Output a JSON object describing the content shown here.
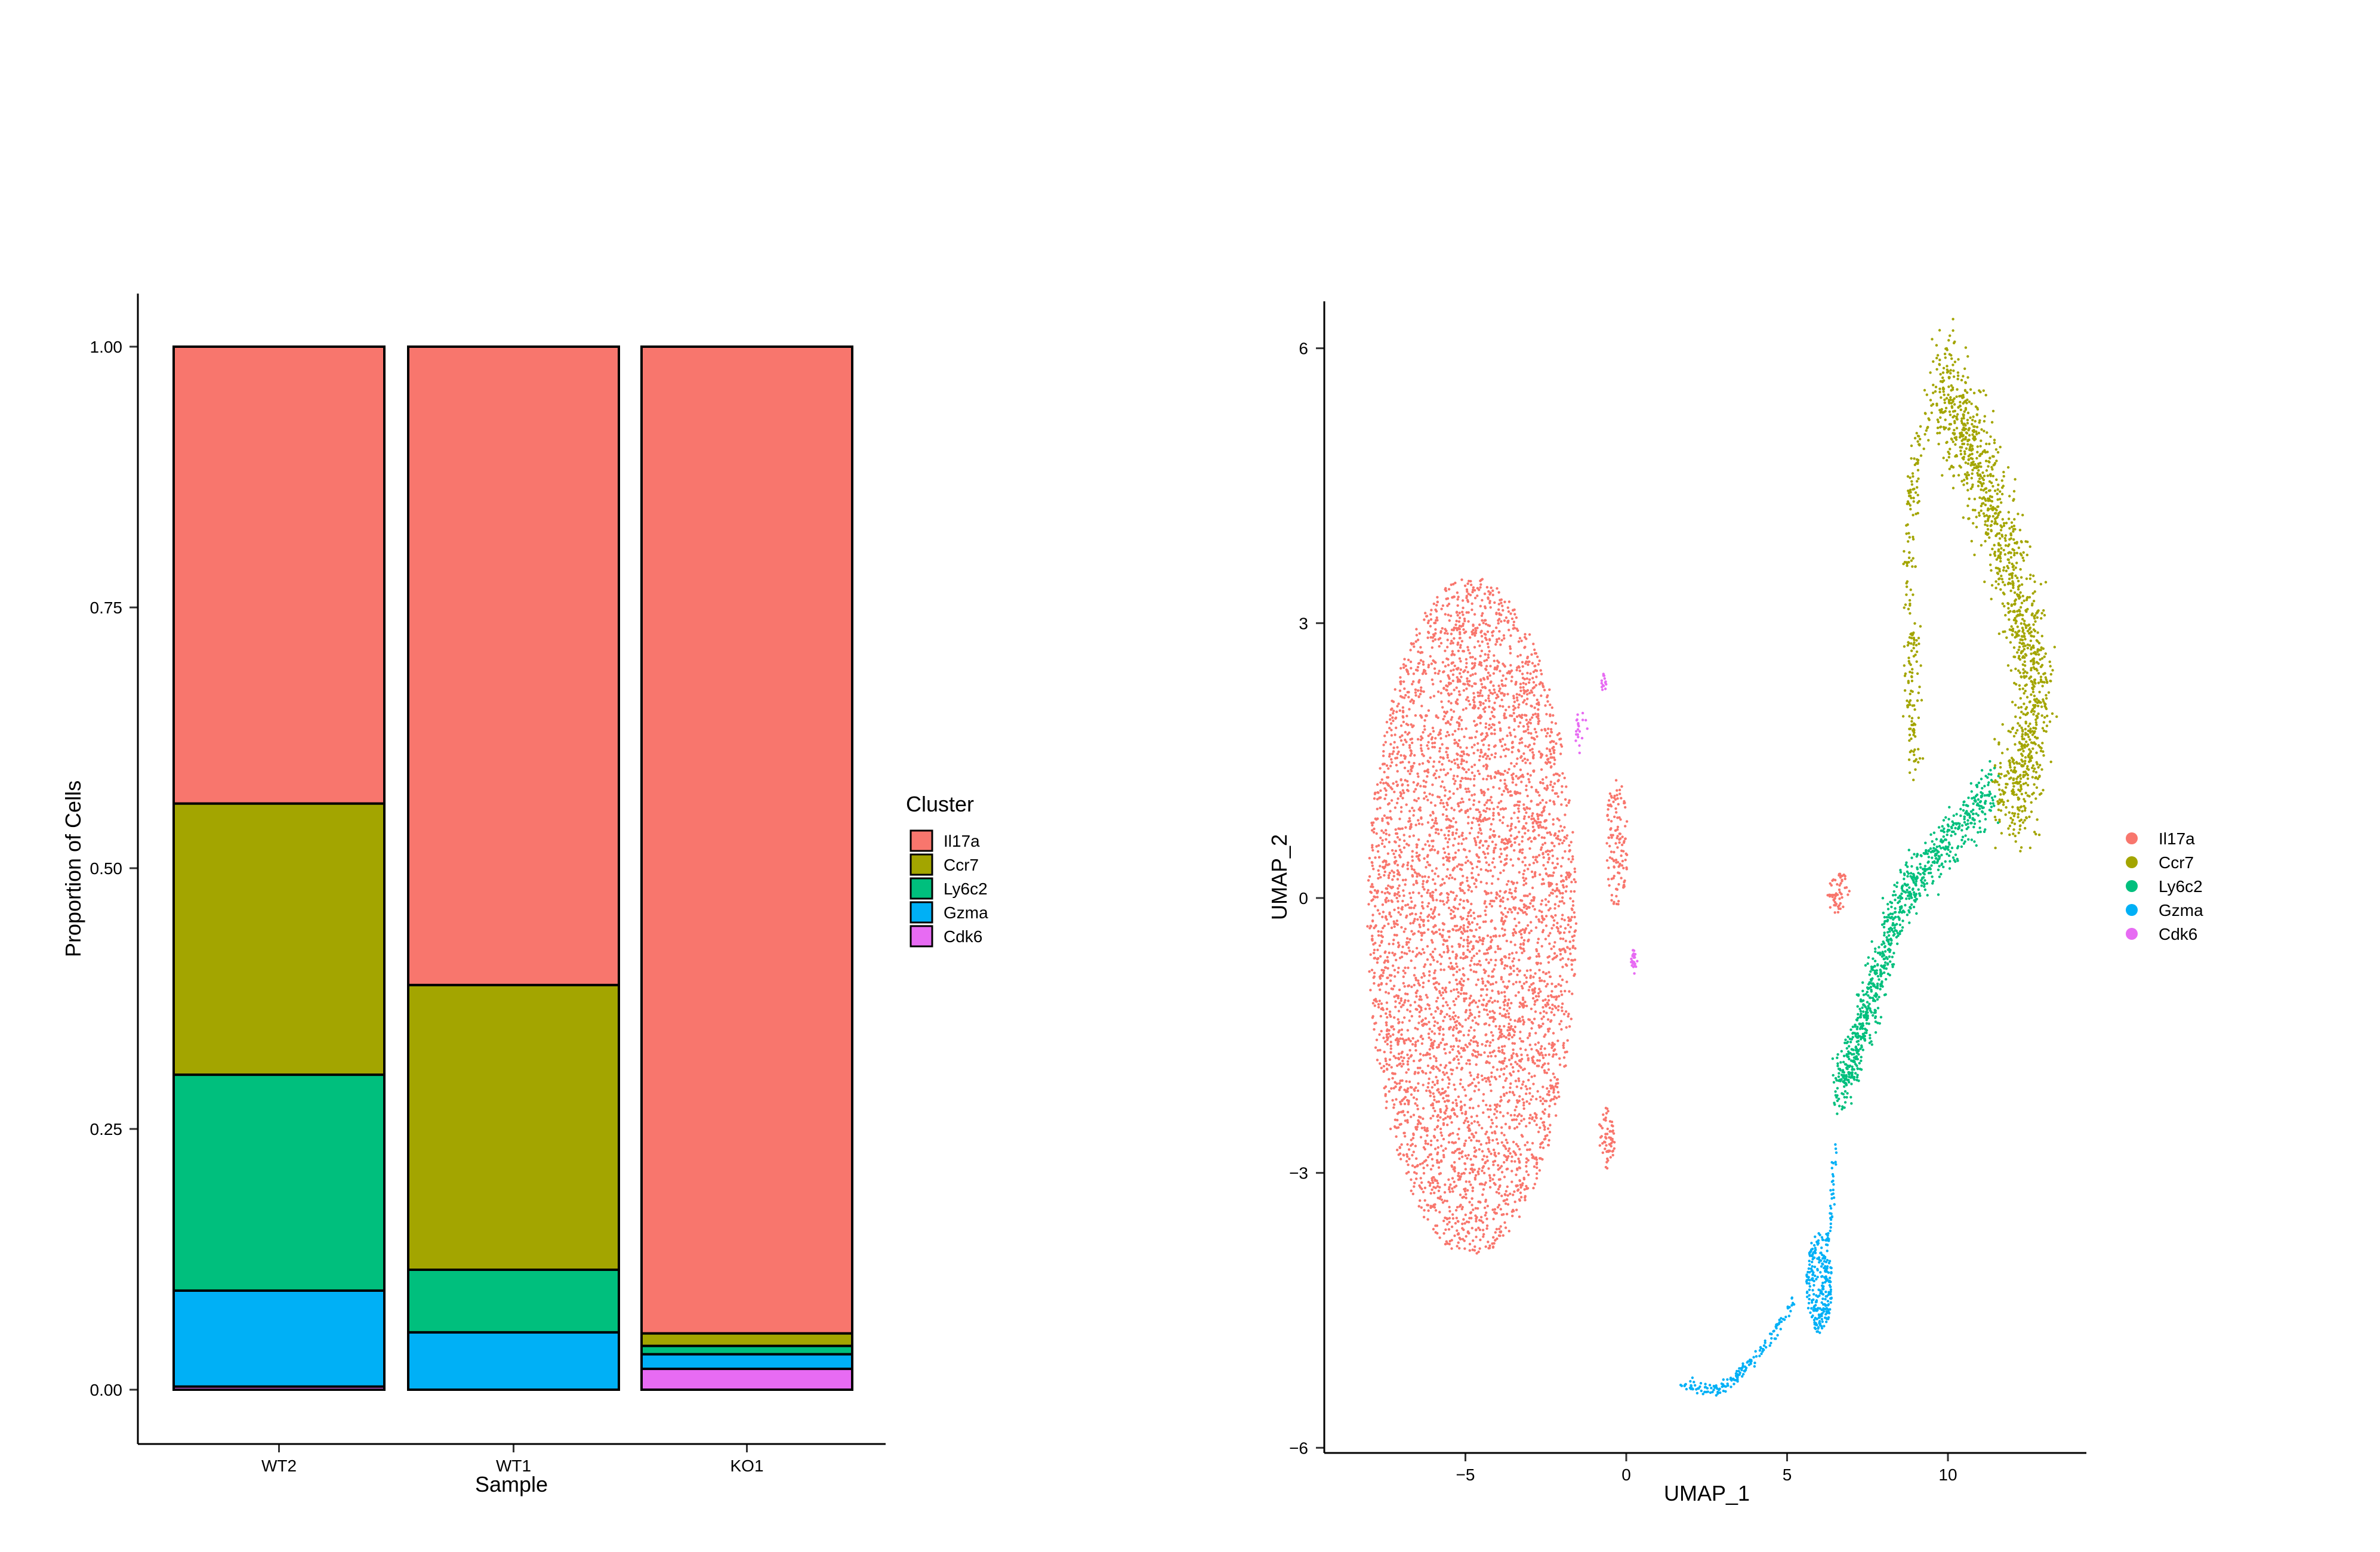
{
  "chart_data": [
    {
      "type": "bar",
      "stacked": true,
      "normalized": true,
      "categories": [
        "WT2",
        "WT1",
        "KO1"
      ],
      "series": [
        {
          "name": "Il17a",
          "color": "#F8766D",
          "values": [
            0.438,
            0.612,
            0.946
          ]
        },
        {
          "name": "Ccr7",
          "color": "#A3A500",
          "values": [
            0.26,
            0.273,
            0.012
          ]
        },
        {
          "name": "Ly6c2",
          "color": "#00BF7D",
          "values": [
            0.207,
            0.06,
            0.008
          ]
        },
        {
          "name": "Gzma",
          "color": "#00B0F6",
          "values": [
            0.092,
            0.055,
            0.014
          ]
        },
        {
          "name": "Cdk6",
          "color": "#E76BF3",
          "values": [
            0.003,
            0.0,
            0.02
          ]
        }
      ],
      "xlabel": "Sample",
      "ylabel": "Proportion of Cells",
      "ylim": [
        0,
        1
      ],
      "yticks": [
        0.0,
        0.25,
        0.5,
        0.75,
        1.0
      ],
      "ytick_labels": [
        "0.00",
        "0.25",
        "0.50",
        "0.75",
        "1.00"
      ],
      "legend_title": "Cluster",
      "legend_position": "right",
      "grid": false
    },
    {
      "type": "scatter",
      "xlabel": "UMAP_1",
      "ylabel": "UMAP_2",
      "xlim": [
        -8.7,
        14.6
      ],
      "ylim": [
        -6.1,
        6.3
      ],
      "xticks": [
        -5,
        0,
        5,
        10
      ],
      "xtick_labels": [
        "−5",
        "0",
        "5",
        "10"
      ],
      "yticks": [
        -6,
        -3,
        0,
        3,
        6
      ],
      "ytick_labels": [
        "−6",
        "−3",
        "0",
        "3",
        "6"
      ],
      "legend_position": "right",
      "grid": false,
      "series": [
        {
          "name": "Il17a",
          "color": "#F8766D",
          "approx_points": 5200,
          "cluster_centers": [
            [
              -4.8,
              -0.2
            ],
            [
              6.6,
              0.1
            ],
            [
              -0.6,
              -2.6
            ]
          ]
        },
        {
          "name": "Ccr7",
          "color": "#A3A500",
          "approx_points": 1500,
          "cluster_centers": [
            [
              11.2,
              3.2
            ]
          ]
        },
        {
          "name": "Ly6c2",
          "color": "#00BF7D",
          "approx_points": 900,
          "cluster_centers": [
            [
              9.2,
              0.3
            ]
          ]
        },
        {
          "name": "Gzma",
          "color": "#00B0F6",
          "approx_points": 450,
          "cluster_centers": [
            [
              6.0,
              -4.2
            ],
            [
              2.5,
              -5.3
            ]
          ]
        },
        {
          "name": "Cdk6",
          "color": "#E76BF3",
          "approx_points": 60,
          "cluster_centers": [
            [
              -1.2,
              1.8
            ],
            [
              0.3,
              -0.7
            ]
          ]
        }
      ]
    }
  ]
}
